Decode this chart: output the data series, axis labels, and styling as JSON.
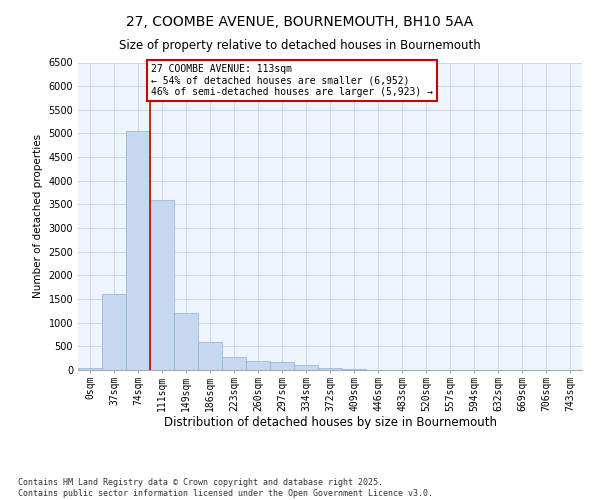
{
  "title": "27, COOMBE AVENUE, BOURNEMOUTH, BH10 5AA",
  "subtitle": "Size of property relative to detached houses in Bournemouth",
  "xlabel": "Distribution of detached houses by size in Bournemouth",
  "ylabel": "Number of detached properties",
  "categories": [
    "0sqm",
    "37sqm",
    "74sqm",
    "111sqm",
    "149sqm",
    "186sqm",
    "223sqm",
    "260sqm",
    "297sqm",
    "334sqm",
    "372sqm",
    "409sqm",
    "446sqm",
    "483sqm",
    "520sqm",
    "557sqm",
    "594sqm",
    "632sqm",
    "669sqm",
    "706sqm",
    "743sqm"
  ],
  "values": [
    50,
    1600,
    5050,
    3600,
    1200,
    600,
    280,
    200,
    160,
    110,
    50,
    20,
    10,
    5,
    3,
    2,
    1,
    1,
    0,
    0,
    0
  ],
  "bar_color": "#c5d8f0",
  "bar_edge_color": "#8ab4d8",
  "grid_color": "#c8d8e8",
  "background_color": "#eef4fb",
  "vline_color": "#cc0000",
  "annotation_text": "27 COOMBE AVENUE: 113sqm\n← 54% of detached houses are smaller (6,952)\n46% of semi-detached houses are larger (5,923) →",
  "annotation_box_color": "#ffffff",
  "annotation_box_edge": "#cc0000",
  "ylim": [
    0,
    6500
  ],
  "yticks": [
    0,
    500,
    1000,
    1500,
    2000,
    2500,
    3000,
    3500,
    4000,
    4500,
    5000,
    5500,
    6000,
    6500
  ],
  "footnote": "Contains HM Land Registry data © Crown copyright and database right 2025.\nContains public sector information licensed under the Open Government Licence v3.0.",
  "title_fontsize": 10,
  "subtitle_fontsize": 8.5,
  "xlabel_fontsize": 8.5,
  "ylabel_fontsize": 7.5,
  "tick_fontsize": 7,
  "annotation_fontsize": 7,
  "footnote_fontsize": 6
}
